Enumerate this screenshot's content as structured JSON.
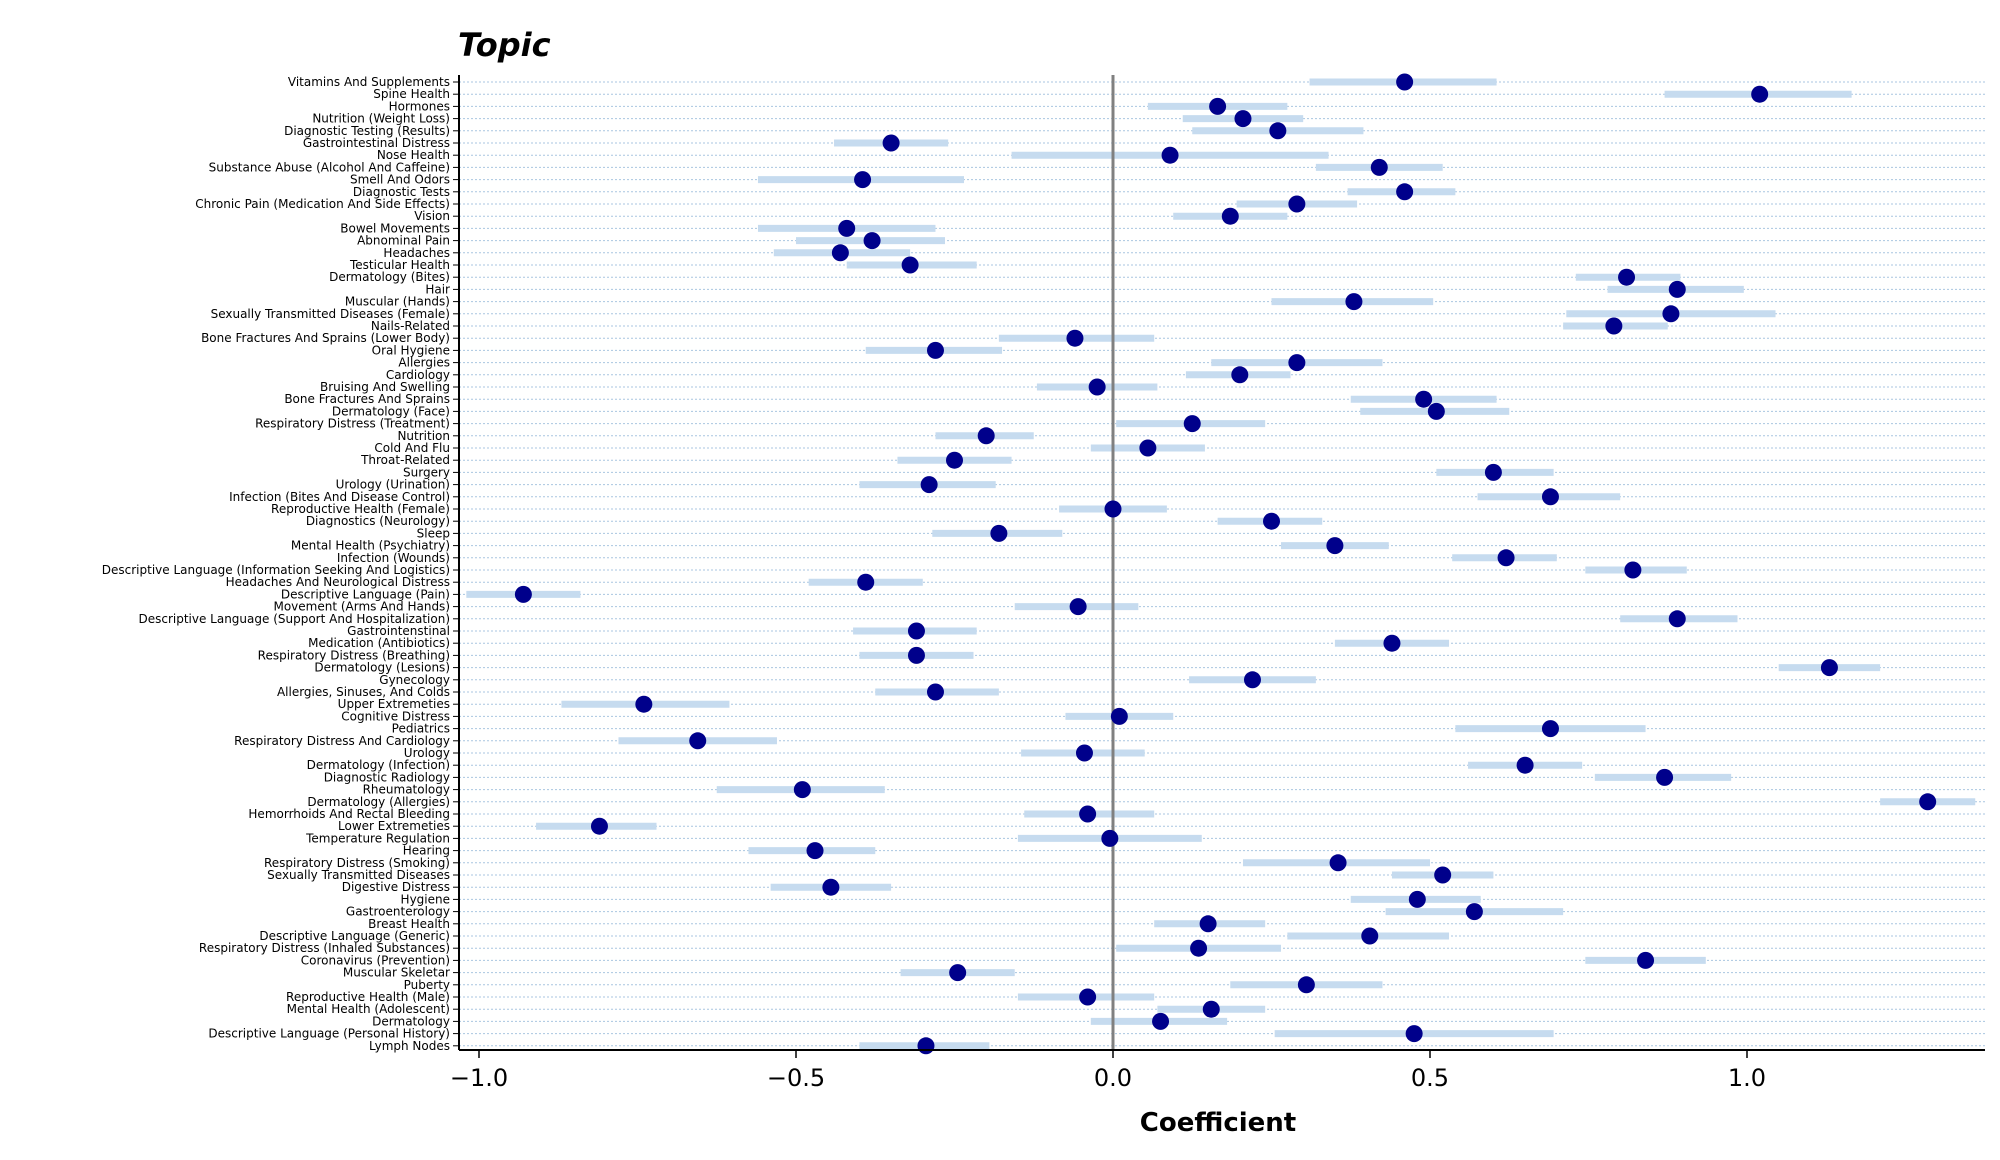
{
  "chart_data": {
    "type": "scatter",
    "title": "Topic",
    "xlabel": "Coefficient",
    "ylabel": "",
    "xlim": [
      -1.03,
      1.37
    ],
    "xticks": [
      -1.0,
      -0.5,
      0.0,
      0.5,
      1.0
    ],
    "xtick_labels": [
      "−1.0",
      "−0.5",
      "0.0",
      "0.5",
      "1.0"
    ],
    "grid": "horizontal dotted",
    "legend": "none",
    "colors": {
      "point": "#00008b",
      "interval": "#c6dbef",
      "zero_line": "#808080",
      "grid": "#a9c6e0"
    },
    "categories": [
      "Vitamins And Supplements",
      "Spine Health",
      "Hormones",
      "Nutrition (Weight Loss)",
      "Diagnostic Testing (Results)",
      "Gastrointestinal Distress",
      "Nose Health",
      "Substance Abuse (Alcohol And Caffeine)",
      "Smell And Odors",
      "Diagnostic Tests",
      "Chronic Pain (Medication And Side Effects)",
      "Vision",
      "Bowel Movements",
      "Abnominal Pain",
      "Headaches",
      "Testicular Health",
      "Dermatology (Bites)",
      "Hair",
      "Muscular (Hands)",
      "Sexually Transmitted Diseases (Female)",
      "Nails-Related",
      "Bone Fractures And Sprains (Lower Body)",
      "Oral Hygiene",
      "Allergies",
      "Cardiology",
      "Bruising And Swelling",
      "Bone Fractures And Sprains",
      "Dermatology (Face)",
      "Respiratory Distress (Treatment)",
      "Nutrition",
      "Cold And Flu",
      "Throat-Related",
      "Surgery",
      "Urology (Urination)",
      "Infection (Bites And Disease Control)",
      "Reproductive Health (Female)",
      "Diagnostics (Neurology)",
      "Sleep",
      "Mental Health (Psychiatry)",
      "Infection (Wounds)",
      "Descriptive Language (Information Seeking And Logistics)",
      "Headaches And Neurological Distress",
      "Descriptive Language (Pain)",
      "Movement (Arms And Hands)",
      "Descriptive Language (Support And Hospitalization)",
      "Gastrointenstinal",
      "Medication (Antibiotics)",
      "Respiratory Distress (Breathing)",
      "Dermatology (Lesions)",
      "Gynecology",
      "Allergies, Sinuses, And Colds",
      "Upper Extremeties",
      "Cognitive Distress",
      "Pediatrics",
      "Respiratory Distress And Cardiology",
      "Urology",
      "Dermatology (Infection)",
      "Diagnostic Radiology",
      "Rheumatology",
      "Dermatology (Allergies)",
      "Hemorrhoids And Rectal Bleeding",
      "Lower Extremeties",
      "Temperature Regulation",
      "Hearing",
      "Respiratory Distress (Smoking)",
      "Sexually Transmitted Diseases",
      "Digestive Distress",
      "Hygiene",
      "Gastroenterology",
      "Breast Health",
      "Descriptive Language (Generic)",
      "Respiratory Distress (Inhaled Substances)",
      "Coronavirus (Prevention)",
      "Muscular Skeletar",
      "Puberty",
      "Reproductive Health (Male)",
      "Mental Health (Adolescent)",
      "Dermatology",
      "Descriptive Language (Personal History)",
      "Lymph Nodes"
    ],
    "series": [
      {
        "values": [
          0.46,
          1.02,
          0.165,
          0.205,
          0.26,
          -0.35,
          0.09,
          0.42,
          -0.395,
          0.46,
          0.29,
          0.185,
          -0.42,
          -0.38,
          -0.43,
          -0.32,
          0.81,
          0.89,
          0.38,
          0.88,
          0.79,
          -0.06,
          -0.28,
          0.29,
          0.2,
          -0.025,
          0.49,
          0.51,
          0.125,
          -0.2,
          0.055,
          -0.25,
          0.6,
          -0.29,
          0.69,
          0.0,
          0.25,
          -0.18,
          0.35,
          0.62,
          0.82,
          -0.39,
          -0.93,
          -0.055,
          0.89,
          -0.31,
          0.44,
          -0.31,
          1.13,
          0.22,
          -0.28,
          -0.74,
          0.01,
          0.69,
          -0.655,
          -0.045,
          0.65,
          0.87,
          -0.49,
          1.285,
          -0.04,
          -0.81,
          -0.005,
          -0.47,
          0.355,
          0.52,
          -0.445,
          0.48,
          0.57,
          0.15,
          0.405,
          0.135,
          0.84,
          -0.245,
          0.305,
          -0.04,
          0.155,
          0.075,
          0.475,
          -0.295
        ],
        "lower": [
          0.31,
          0.87,
          0.055,
          0.11,
          0.125,
          -0.44,
          -0.16,
          0.32,
          -0.56,
          0.37,
          0.195,
          0.095,
          -0.56,
          -0.5,
          -0.535,
          -0.42,
          0.73,
          0.78,
          0.25,
          0.715,
          0.71,
          -0.18,
          -0.39,
          0.155,
          0.115,
          -0.12,
          0.375,
          0.39,
          0.005,
          -0.28,
          -0.035,
          -0.34,
          0.51,
          -0.4,
          0.575,
          -0.085,
          0.165,
          -0.285,
          0.265,
          0.535,
          0.745,
          -0.48,
          -1.02,
          -0.155,
          0.8,
          -0.41,
          0.35,
          -0.4,
          1.05,
          0.12,
          -0.375,
          -0.87,
          -0.075,
          0.54,
          -0.78,
          -0.145,
          0.56,
          0.76,
          -0.625,
          1.21,
          -0.14,
          -0.91,
          -0.15,
          -0.575,
          0.205,
          0.44,
          -0.54,
          0.375,
          0.43,
          0.065,
          0.275,
          0.005,
          0.745,
          -0.335,
          0.185,
          -0.15,
          0.07,
          -0.035,
          0.255,
          -0.4
        ],
        "upper": [
          0.605,
          1.165,
          0.275,
          0.3,
          0.395,
          -0.26,
          0.34,
          0.52,
          -0.235,
          0.54,
          0.385,
          0.275,
          -0.28,
          -0.265,
          -0.32,
          -0.215,
          0.895,
          0.995,
          0.505,
          1.045,
          0.875,
          0.065,
          -0.175,
          0.425,
          0.28,
          0.07,
          0.605,
          0.625,
          0.24,
          -0.125,
          0.145,
          -0.16,
          0.695,
          -0.185,
          0.8,
          0.085,
          0.33,
          -0.08,
          0.435,
          0.7,
          0.905,
          -0.3,
          -0.84,
          0.04,
          0.985,
          -0.215,
          0.53,
          -0.22,
          1.21,
          0.32,
          -0.18,
          -0.605,
          0.095,
          0.84,
          -0.53,
          0.05,
          0.74,
          0.975,
          -0.36,
          1.36,
          0.065,
          -0.72,
          0.14,
          -0.375,
          0.5,
          0.6,
          -0.35,
          0.58,
          0.71,
          0.24,
          0.53,
          0.265,
          0.935,
          -0.155,
          0.425,
          0.065,
          0.24,
          0.18,
          0.695,
          -0.195
        ]
      }
    ]
  }
}
